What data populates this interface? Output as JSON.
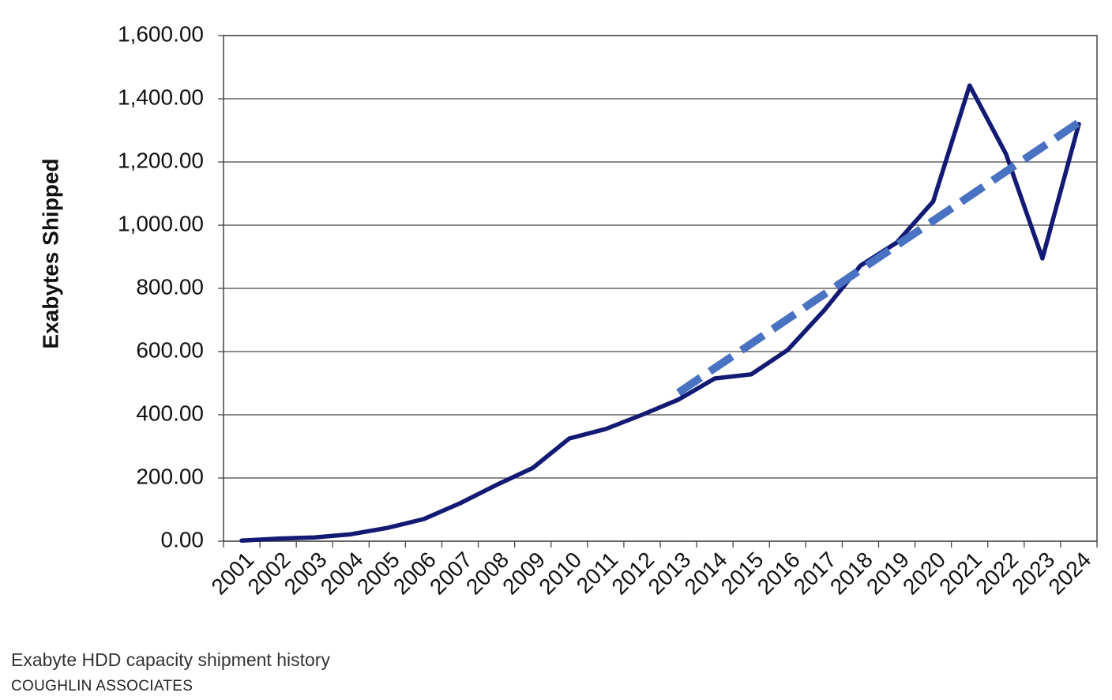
{
  "chart_data": {
    "type": "line",
    "ylabel": "Exabytes Shipped",
    "caption": "Exabyte HDD capacity shipment history",
    "source": "COUGHLIN ASSOCIATES",
    "categories": [
      "2001",
      "2002",
      "2003",
      "2004",
      "2005",
      "2006",
      "2007",
      "2008",
      "2009",
      "2010",
      "2011",
      "2012",
      "2013",
      "2014",
      "2015",
      "2016",
      "2017",
      "2018",
      "2019",
      "2020",
      "2021",
      "2022",
      "2023",
      "2024"
    ],
    "series": [
      {
        "color": "#131a73",
        "dashed": false,
        "values": [
          2,
          8,
          12,
          22,
          42,
          70,
          120,
          178,
          232,
          325,
          355,
          400,
          448,
          515,
          528,
          605,
          730,
          872,
          945,
          1075,
          1442,
          1225,
          895,
          1320
        ]
      },
      {
        "color": "#4a72c2",
        "dashed": true,
        "values": [
          null,
          null,
          null,
          null,
          null,
          null,
          null,
          null,
          null,
          null,
          null,
          null,
          470,
          548,
          625,
          703,
          781,
          859,
          936,
          1014,
          1092,
          1170,
          1247,
          1325
        ]
      }
    ],
    "ylim": [
      0,
      1600
    ],
    "yticks": [
      {
        "value": 0,
        "label": "0.00"
      },
      {
        "value": 200,
        "label": "200.00"
      },
      {
        "value": 400,
        "label": "400.00"
      },
      {
        "value": 600,
        "label": "600.00"
      },
      {
        "value": 800,
        "label": "800.00"
      },
      {
        "value": 1000,
        "label": "1,000.00"
      },
      {
        "value": 1200,
        "label": "1,200.00"
      },
      {
        "value": 1400,
        "label": "1,400.00"
      },
      {
        "value": 1600,
        "label": "1,600.00"
      }
    ],
    "grid": true
  }
}
